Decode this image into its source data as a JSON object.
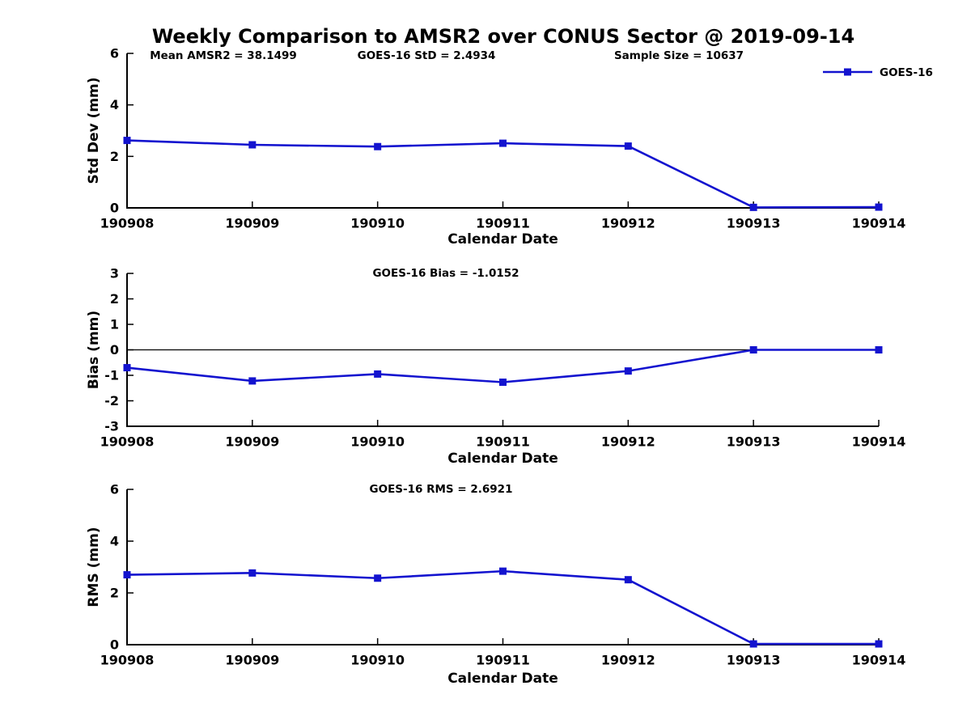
{
  "page": {
    "title": "Weekly Comparison to AMSR2 over CONUS Sector @ 2019-09-14",
    "background": "#ffffff"
  },
  "colors": {
    "series": "#1313cf",
    "axis": "#000000",
    "text": "#000000",
    "zero_line": "#000000"
  },
  "legend": {
    "label": "GOES-16",
    "position": "upper right"
  },
  "chart_data": [
    {
      "type": "line",
      "ylabel": "Std Dev (mm)",
      "xlabel": "Calendar Date",
      "ylim": [
        0,
        6
      ],
      "yticks": [
        0,
        2,
        4,
        6
      ],
      "grid": false,
      "categories": [
        "190908",
        "190909",
        "190910",
        "190911",
        "190912",
        "190913",
        "190914"
      ],
      "series": [
        {
          "name": "GOES-16",
          "color": "#1313cf",
          "marker": "square",
          "values": [
            2.62,
            2.45,
            2.38,
            2.51,
            2.4,
            0.02,
            0.03
          ]
        }
      ],
      "annotations": [
        "Mean AMSR2 = 38.1499",
        "GOES-16 StD = 2.4934",
        "Sample Size = 10637"
      ],
      "legend": true
    },
    {
      "type": "line",
      "ylabel": "Bias (mm)",
      "xlabel": "Calendar Date",
      "ylim": [
        -3,
        3
      ],
      "yticks": [
        -3,
        -2,
        -1,
        0,
        1,
        2,
        3
      ],
      "grid": false,
      "zero_line": true,
      "categories": [
        "190908",
        "190909",
        "190910",
        "190911",
        "190912",
        "190913",
        "190914"
      ],
      "series": [
        {
          "name": "GOES-16",
          "color": "#1313cf",
          "marker": "square",
          "values": [
            -0.7,
            -1.22,
            -0.95,
            -1.27,
            -0.83,
            0.0,
            0.0
          ]
        }
      ],
      "annotations": [
        "GOES-16 Bias  = -1.0152"
      ],
      "legend": false
    },
    {
      "type": "line",
      "ylabel": "RMS (mm)",
      "xlabel": "Calendar Date",
      "ylim": [
        0,
        6
      ],
      "yticks": [
        0,
        2,
        4,
        6
      ],
      "grid": false,
      "categories": [
        "190908",
        "190909",
        "190910",
        "190911",
        "190912",
        "190913",
        "190914"
      ],
      "series": [
        {
          "name": "GOES-16",
          "color": "#1313cf",
          "marker": "square",
          "values": [
            2.7,
            2.77,
            2.57,
            2.84,
            2.51,
            0.03,
            0.03
          ]
        }
      ],
      "annotations": [
        "GOES-16 RMS = 2.6921"
      ],
      "legend": false
    }
  ]
}
